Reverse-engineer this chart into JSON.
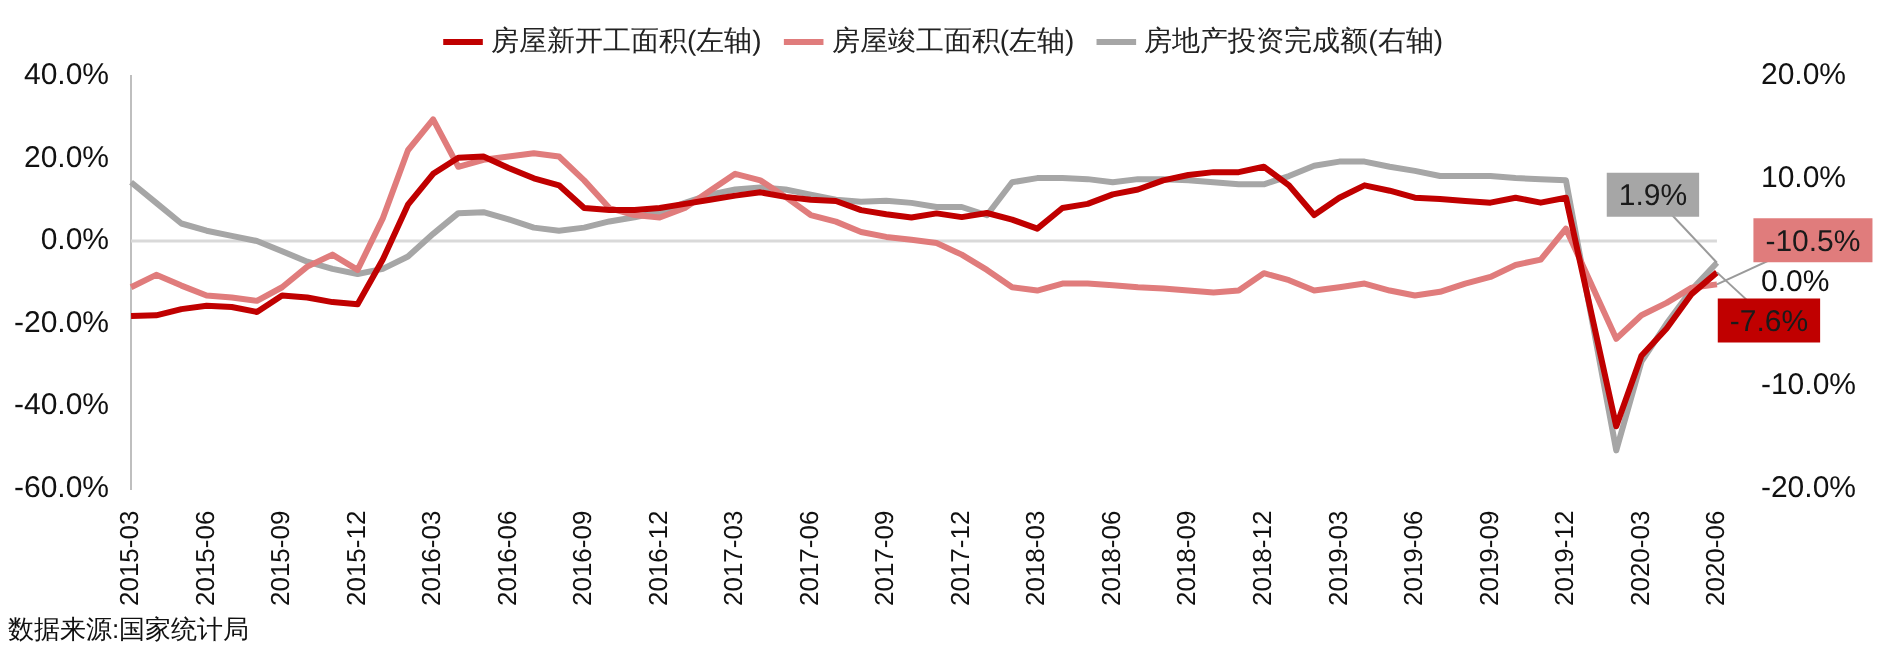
{
  "chart_data": {
    "type": "line",
    "categories": [
      "2015-03",
      null,
      null,
      "2015-06",
      null,
      null,
      "2015-09",
      null,
      null,
      "2015-12",
      null,
      null,
      "2016-03",
      null,
      null,
      "2016-06",
      null,
      null,
      "2016-09",
      null,
      null,
      "2016-12",
      null,
      null,
      "2017-03",
      null,
      null,
      "2017-06",
      null,
      null,
      "2017-09",
      null,
      null,
      "2017-12",
      null,
      null,
      "2018-03",
      null,
      null,
      "2018-06",
      null,
      null,
      "2018-09",
      null,
      null,
      "2018-12",
      null,
      null,
      "2019-03",
      null,
      null,
      "2019-06",
      null,
      null,
      "2019-09",
      null,
      null,
      "2019-12",
      null,
      null,
      "2020-03",
      null,
      null,
      "2020-06"
    ],
    "series": [
      {
        "name": "房屋新开工面积(左轴)",
        "color": "#c00000",
        "values": [
          -18.2,
          -18,
          -16.5,
          -15.7,
          -16,
          -17.2,
          -13.2,
          -13.7,
          -14.8,
          -15.3,
          -4.5,
          8.8,
          16.3,
          20.2,
          20.5,
          17.7,
          15.2,
          13.5,
          8,
          7.5,
          7.5,
          8,
          9,
          10,
          11,
          11.8,
          10.7,
          10,
          9.7,
          7.5,
          6.5,
          5.7,
          6.7,
          5.8,
          6.8,
          5.2,
          3,
          8,
          9,
          11.3,
          12.5,
          14.7,
          16,
          16.7,
          16.7,
          18,
          13.5,
          6.3,
          10.5,
          13.5,
          12.2,
          10.5,
          10.2,
          9.7,
          9.3,
          10.5,
          9.3,
          10.5,
          null,
          -44.9,
          -27.8,
          -21.2,
          -12.8,
          -7.6
        ],
        "value_labels": [
          null,
          null,
          null,
          null,
          null,
          null,
          null,
          null,
          null,
          null,
          null,
          null,
          null,
          null,
          null,
          null,
          null,
          null,
          null,
          null,
          null,
          null,
          null,
          null,
          null,
          null,
          null,
          null,
          null,
          null,
          null,
          null,
          null,
          null,
          null,
          null,
          null,
          null,
          null,
          null,
          null,
          null,
          null,
          null,
          null,
          null,
          null,
          null,
          null,
          null,
          null,
          null,
          null,
          null,
          null,
          null,
          null,
          null,
          null,
          null,
          null,
          null,
          null,
          "-7.6%"
        ]
      },
      {
        "name": "房屋竣工面积(左轴)",
        "color": "#e07c7c",
        "values": [
          -11.2,
          -8.2,
          -10.8,
          -13.2,
          -13.7,
          -14.5,
          -11.2,
          -6.2,
          -3.3,
          -7,
          5.5,
          22,
          29.5,
          18,
          19.7,
          20.5,
          21.3,
          20.5,
          14.7,
          8,
          6.3,
          5.7,
          8,
          12.2,
          16.3,
          14.7,
          10.7,
          6.3,
          4.7,
          2.2,
          1,
          0.3,
          -0.5,
          -3.3,
          -7,
          -11.2,
          -12,
          -10.3,
          -10.3,
          -10.7,
          -11.2,
          -11.5,
          -12,
          -12.5,
          -12,
          -7.8,
          -9.5,
          -12,
          -11.2,
          -10.3,
          -12,
          -13.2,
          -12.3,
          -10.3,
          -8.7,
          -5.8,
          -4.5,
          3,
          null,
          -23.7,
          -18,
          -15,
          -11.3,
          -10.5
        ],
        "value_labels": [
          null,
          null,
          null,
          null,
          null,
          null,
          null,
          null,
          null,
          null,
          null,
          null,
          null,
          null,
          null,
          null,
          null,
          null,
          null,
          null,
          null,
          null,
          null,
          null,
          null,
          null,
          null,
          null,
          null,
          null,
          null,
          null,
          null,
          null,
          null,
          null,
          null,
          null,
          null,
          null,
          null,
          null,
          null,
          null,
          null,
          null,
          null,
          null,
          null,
          null,
          null,
          null,
          null,
          null,
          null,
          null,
          null,
          null,
          null,
          null,
          null,
          null,
          null,
          "-10.5%"
        ]
      },
      {
        "name": "房地产投资完成额(右轴)",
        "color": "#a6a6a6",
        "axis": "y2",
        "values": [
          9.7,
          7.7,
          5.7,
          5,
          4.5,
          4,
          3,
          2,
          1.3,
          0.8,
          1.3,
          2.5,
          4.7,
          6.7,
          6.8,
          6.1,
          5.3,
          5,
          5.3,
          5.9,
          6.3,
          6.8,
          7.7,
          8.5,
          9,
          9.2,
          9,
          8.5,
          8,
          7.8,
          7.9,
          7.7,
          7.3,
          7.3,
          6.5,
          9.7,
          10.1,
          10.1,
          10,
          9.7,
          10,
          10,
          9.9,
          9.7,
          9.5,
          9.5,
          10.3,
          11.3,
          11.7,
          11.7,
          11.2,
          10.8,
          10.3,
          10.3,
          10.3,
          10.1,
          10,
          9.9,
          null,
          -16.3,
          -7.7,
          -4,
          -0.7,
          1.9
        ],
        "value_labels": [
          null,
          null,
          null,
          null,
          null,
          null,
          null,
          null,
          null,
          null,
          null,
          null,
          null,
          null,
          null,
          null,
          null,
          null,
          null,
          null,
          null,
          null,
          null,
          null,
          null,
          null,
          null,
          null,
          null,
          null,
          null,
          null,
          null,
          null,
          null,
          null,
          null,
          null,
          null,
          null,
          null,
          null,
          null,
          null,
          null,
          null,
          null,
          null,
          null,
          null,
          null,
          null,
          null,
          null,
          null,
          null,
          null,
          null,
          null,
          null,
          null,
          null,
          null,
          "1.9%"
        ]
      }
    ],
    "ylim": [
      -60,
      40
    ],
    "yticks": [
      {
        "value": -60,
        "label": "-60.0%"
      },
      {
        "value": -40,
        "label": "-40.0%"
      },
      {
        "value": -20,
        "label": "-20.0%"
      },
      {
        "value": 0,
        "label": "0.0%"
      },
      {
        "value": 20,
        "label": "20.0%"
      },
      {
        "value": 40,
        "label": "40.0%"
      }
    ],
    "y2lim": [
      -20,
      20
    ],
    "y2ticks": [
      {
        "value": -20,
        "label": "-20.0%"
      },
      {
        "value": -10,
        "label": "-10.0%"
      },
      {
        "value": 0,
        "label": "0.0%"
      },
      {
        "value": 10,
        "label": "10.0%"
      },
      {
        "value": 20,
        "label": "20.0%"
      }
    ],
    "legend": "top",
    "marker": "none",
    "line_style": "solid",
    "grid": false,
    "ref_lines": [
      {
        "axis": "y",
        "value": 0,
        "color": "#d9d9d9"
      }
    ],
    "annotations": [
      "数据来源:国家统计局"
    ]
  }
}
